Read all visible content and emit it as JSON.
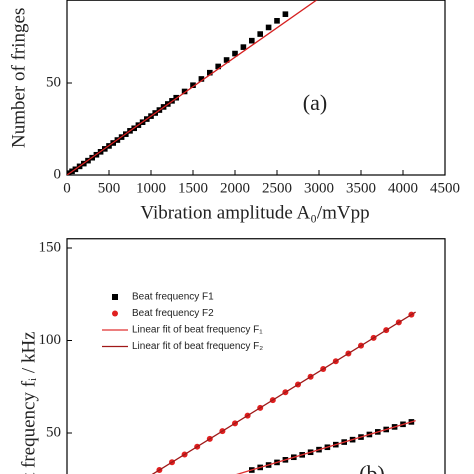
{
  "chart_data": [
    {
      "type": "scatter",
      "x_label": "Vibration amplitude A₀/mVpp",
      "y_label": "Number of fringes",
      "annotation": "(a)",
      "xlim": [
        0,
        4500
      ],
      "xticks": [
        0,
        500,
        1000,
        1500,
        2000,
        2500,
        3000,
        3500,
        4000,
        4500
      ],
      "ylim": [
        0,
        95
      ],
      "yticks": [
        0,
        50
      ],
      "series": [
        {
          "marker": "square",
          "color": "#000000",
          "x": [
            20,
            60,
            100,
            150,
            200,
            250,
            300,
            350,
            400,
            450,
            500,
            550,
            600,
            650,
            700,
            750,
            800,
            850,
            900,
            950,
            1000,
            1050,
            1100,
            1150,
            1200,
            1250,
            1300,
            1400,
            1500,
            1600,
            1700,
            1800,
            1900,
            2000,
            2100,
            2200,
            2300,
            2400,
            2500,
            2600
          ],
          "values": [
            1,
            2,
            3.1,
            4.7,
            6.2,
            7.8,
            9.4,
            11,
            12.6,
            14.2,
            15.8,
            17.4,
            19,
            20.6,
            22.2,
            24,
            25.4,
            27.1,
            28.7,
            30.4,
            32,
            33.7,
            35.3,
            37,
            38.6,
            40.3,
            42,
            45.4,
            48.8,
            52.2,
            55.6,
            59,
            62.5,
            66,
            69.5,
            73,
            76.6,
            80.2,
            83.8,
            87.4
          ]
        },
        {
          "marker": "line",
          "color": "#d62020",
          "x": [
            0,
            3000
          ],
          "values": [
            0,
            96
          ]
        }
      ]
    },
    {
      "type": "scatter",
      "y_label": "t frequency fᵢ / kHz",
      "annotation": "(b)",
      "xlim": [
        0,
        4500
      ],
      "ylim": [
        25,
        155
      ],
      "yticks": [
        50,
        100,
        150
      ],
      "legend": "upper left",
      "series": [
        {
          "name": "Beat frequency F1",
          "marker": "square",
          "color": "#000000",
          "x": [
            2200,
            2300,
            2400,
            2500,
            2600,
            2700,
            2800,
            2900,
            3000,
            3100,
            3200,
            3300,
            3400,
            3500,
            3600,
            3700,
            3800,
            3900,
            4000,
            4100
          ],
          "values": [
            30,
            31.4,
            32.7,
            34.1,
            35.5,
            36.9,
            38.2,
            39.6,
            41,
            42.3,
            43.7,
            45.1,
            46.4,
            47.8,
            49.2,
            50.6,
            51.9,
            53.3,
            54.7,
            56
          ]
        },
        {
          "name": "Beat frequency F2",
          "marker": "circle",
          "color": "#e02020",
          "x": [
            1100,
            1250,
            1400,
            1550,
            1700,
            1850,
            2000,
            2150,
            2300,
            2450,
            2600,
            2750,
            2900,
            3050,
            3200,
            3350,
            3500,
            3650,
            3800,
            3950,
            4100
          ],
          "values": [
            30,
            34.2,
            38.4,
            42.6,
            46.8,
            51,
            55.2,
            59.4,
            63.6,
            67.8,
            72,
            76.2,
            80.4,
            84.6,
            88.8,
            93,
            97.2,
            101.4,
            105.6,
            109.8,
            114
          ]
        },
        {
          "name": "Linear fit of beat frequency F₁",
          "marker": "line",
          "color": "#e03030",
          "x": [
            2000,
            4150
          ],
          "values": [
            27.3,
            56.7
          ]
        },
        {
          "name": "Linear fit of beat frequency F₂",
          "marker": "line",
          "color": "#a01818",
          "x": [
            1000,
            4150
          ],
          "values": [
            27.2,
            115.4
          ]
        }
      ]
    }
  ]
}
